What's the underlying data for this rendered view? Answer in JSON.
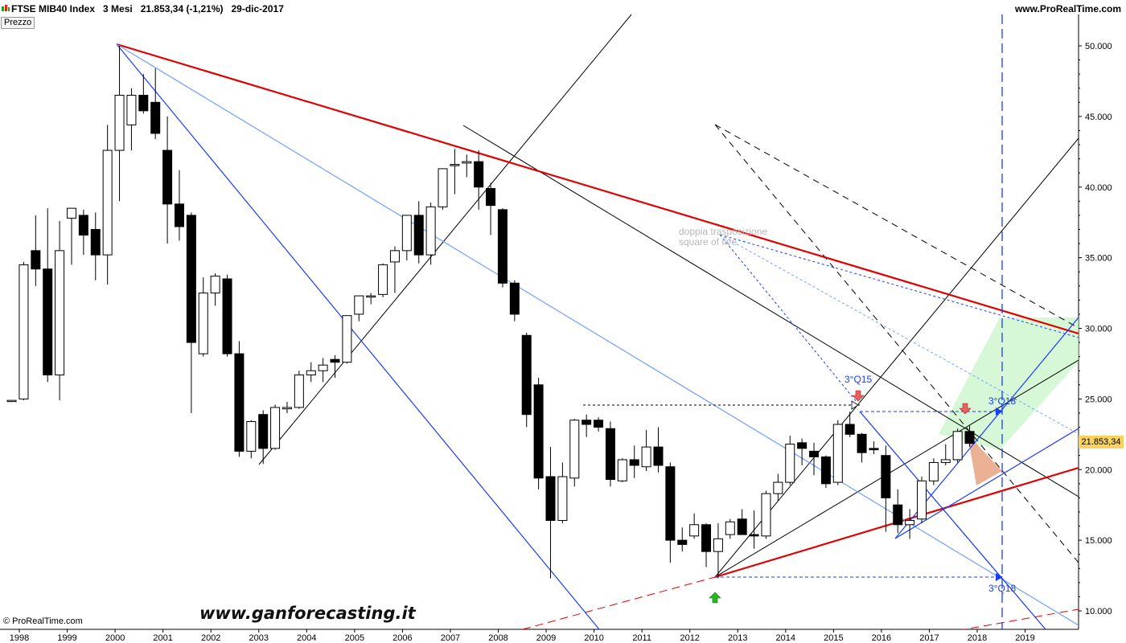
{
  "header": {
    "title": "FTSE MIB40 Index",
    "period": "3 Mesi",
    "last_quote": "21.853,34 (-1,21%)",
    "date": "29-dic-2017",
    "site": "www.ProRealTime.com"
  },
  "panel_label": "Prezzo",
  "credit": "© ProRealTime.com",
  "watermark": "www.ganforecasting.it",
  "last_price_label": "21.853,34",
  "annotations": {
    "q15": "3°Q15",
    "q18_upper": "3°Q18",
    "q18_lower": "3°Q18",
    "note_line1": "doppia trasposizione",
    "note_line2": "square of five"
  },
  "colors": {
    "red_trend": "#e00000",
    "blue": "#1a3cff",
    "light_blue": "#6fa0ff",
    "green_zone": "#c8f5c8",
    "salmon_zone": "#e9a88a",
    "last_price_bg": "#f7d25e"
  },
  "chart_data": {
    "type": "candlestick",
    "interval": "quarterly",
    "ylim": [
      9000,
      52000
    ],
    "y_ticks": [
      "50.000",
      "45.000",
      "40.000",
      "35.000",
      "30.000",
      "25.000",
      "20.000",
      "15.000",
      "10.000"
    ],
    "y_tick_values": [
      50000,
      45000,
      40000,
      35000,
      30000,
      25000,
      20000,
      15000,
      10000
    ],
    "x_ticks": [
      "1998",
      "1999",
      "2000",
      "2001",
      "2002",
      "2003",
      "2004",
      "2005",
      "2006",
      "2007",
      "2008",
      "2009",
      "2010",
      "2011",
      "2012",
      "2013",
      "2014",
      "2015",
      "2016",
      "2017",
      "2018",
      "2019"
    ],
    "x_range": [
      1997.75,
      2020.1
    ],
    "candles": [
      {
        "t": 1997.875,
        "o": 24900,
        "h": 24900,
        "l": 24900,
        "c": 24900
      },
      {
        "t": 1998.125,
        "o": 25000,
        "h": 34700,
        "l": 24900,
        "c": 34500
      },
      {
        "t": 1998.375,
        "o": 35500,
        "h": 38000,
        "l": 33000,
        "c": 34200
      },
      {
        "t": 1998.625,
        "o": 34200,
        "h": 38500,
        "l": 26200,
        "c": 26700
      },
      {
        "t": 1998.875,
        "o": 26700,
        "h": 37600,
        "l": 24900,
        "c": 35500
      },
      {
        "t": 1999.125,
        "o": 37800,
        "h": 38500,
        "l": 34500,
        "c": 38500
      },
      {
        "t": 1999.375,
        "o": 38000,
        "h": 38400,
        "l": 35200,
        "c": 36600
      },
      {
        "t": 1999.625,
        "o": 37000,
        "h": 38200,
        "l": 33400,
        "c": 35200
      },
      {
        "t": 1999.875,
        "o": 35200,
        "h": 44400,
        "l": 33100,
        "c": 42600
      },
      {
        "t": 2000.125,
        "o": 42600,
        "h": 50000,
        "l": 39000,
        "c": 46500
      },
      {
        "t": 2000.375,
        "o": 44400,
        "h": 47000,
        "l": 42600,
        "c": 46500
      },
      {
        "t": 2000.625,
        "o": 46500,
        "h": 48000,
        "l": 45200,
        "c": 45400
      },
      {
        "t": 2000.875,
        "o": 46000,
        "h": 48400,
        "l": 43400,
        "c": 43800
      },
      {
        "t": 2001.125,
        "o": 42600,
        "h": 45000,
        "l": 36000,
        "c": 38800
      },
      {
        "t": 2001.375,
        "o": 38800,
        "h": 41200,
        "l": 36200,
        "c": 37200
      },
      {
        "t": 2001.625,
        "o": 38000,
        "h": 38200,
        "l": 24000,
        "c": 29000
      },
      {
        "t": 2001.875,
        "o": 28200,
        "h": 33600,
        "l": 28000,
        "c": 32500
      },
      {
        "t": 2002.125,
        "o": 32500,
        "h": 33900,
        "l": 31600,
        "c": 33700
      },
      {
        "t": 2002.375,
        "o": 33500,
        "h": 33800,
        "l": 28000,
        "c": 28200
      },
      {
        "t": 2002.625,
        "o": 28200,
        "h": 29100,
        "l": 20900,
        "c": 21300
      },
      {
        "t": 2002.875,
        "o": 21300,
        "h": 23500,
        "l": 20800,
        "c": 23400
      },
      {
        "t": 2003.125,
        "o": 23900,
        "h": 24200,
        "l": 20400,
        "c": 21500
      },
      {
        "t": 2003.375,
        "o": 21500,
        "h": 24600,
        "l": 21400,
        "c": 24400
      },
      {
        "t": 2003.625,
        "o": 24300,
        "h": 24800,
        "l": 24000,
        "c": 24400
      },
      {
        "t": 2003.875,
        "o": 24400,
        "h": 27000,
        "l": 24300,
        "c": 26700
      },
      {
        "t": 2004.125,
        "o": 26700,
        "h": 27600,
        "l": 26200,
        "c": 27000
      },
      {
        "t": 2004.375,
        "o": 27000,
        "h": 27900,
        "l": 26200,
        "c": 27400
      },
      {
        "t": 2004.625,
        "o": 27800,
        "h": 28100,
        "l": 26500,
        "c": 27600
      },
      {
        "t": 2004.875,
        "o": 27600,
        "h": 30900,
        "l": 27500,
        "c": 30900
      },
      {
        "t": 2005.125,
        "o": 31000,
        "h": 32300,
        "l": 30500,
        "c": 32300
      },
      {
        "t": 2005.375,
        "o": 32300,
        "h": 32500,
        "l": 31700,
        "c": 32300
      },
      {
        "t": 2005.625,
        "o": 32400,
        "h": 34600,
        "l": 32200,
        "c": 34500
      },
      {
        "t": 2005.875,
        "o": 34700,
        "h": 35800,
        "l": 32500,
        "c": 35500
      },
      {
        "t": 2006.125,
        "o": 35500,
        "h": 38000,
        "l": 34800,
        "c": 38000
      },
      {
        "t": 2006.375,
        "o": 38000,
        "h": 39000,
        "l": 34600,
        "c": 35200
      },
      {
        "t": 2006.625,
        "o": 35200,
        "h": 38900,
        "l": 34500,
        "c": 38600
      },
      {
        "t": 2006.875,
        "o": 38600,
        "h": 41300,
        "l": 38400,
        "c": 41300
      },
      {
        "t": 2007.125,
        "o": 41600,
        "h": 42700,
        "l": 39500,
        "c": 41600
      },
      {
        "t": 2007.375,
        "o": 41700,
        "h": 42300,
        "l": 40700,
        "c": 41800
      },
      {
        "t": 2007.625,
        "o": 41800,
        "h": 42600,
        "l": 38400,
        "c": 40000
      },
      {
        "t": 2007.875,
        "o": 39900,
        "h": 40300,
        "l": 36600,
        "c": 38700
      },
      {
        "t": 2008.125,
        "o": 38400,
        "h": 38500,
        "l": 32900,
        "c": 33200
      },
      {
        "t": 2008.375,
        "o": 33200,
        "h": 33400,
        "l": 30500,
        "c": 31000
      },
      {
        "t": 2008.625,
        "o": 29500,
        "h": 29700,
        "l": 23000,
        "c": 23900
      },
      {
        "t": 2008.875,
        "o": 26000,
        "h": 26500,
        "l": 18600,
        "c": 19400
      },
      {
        "t": 2009.125,
        "o": 19500,
        "h": 21600,
        "l": 12300,
        "c": 16400
      },
      {
        "t": 2009.375,
        "o": 16400,
        "h": 20500,
        "l": 16200,
        "c": 19500
      },
      {
        "t": 2009.625,
        "o": 19400,
        "h": 23600,
        "l": 18800,
        "c": 23500
      },
      {
        "t": 2009.875,
        "o": 23500,
        "h": 23900,
        "l": 22300,
        "c": 23200
      },
      {
        "t": 2010.125,
        "o": 23500,
        "h": 23700,
        "l": 22700,
        "c": 23000
      },
      {
        "t": 2010.375,
        "o": 22900,
        "h": 23400,
        "l": 18800,
        "c": 19300
      },
      {
        "t": 2010.625,
        "o": 19200,
        "h": 20800,
        "l": 19100,
        "c": 20700
      },
      {
        "t": 2010.875,
        "o": 20700,
        "h": 21700,
        "l": 19400,
        "c": 20300
      },
      {
        "t": 2011.125,
        "o": 20200,
        "h": 22800,
        "l": 19900,
        "c": 21600
      },
      {
        "t": 2011.375,
        "o": 21600,
        "h": 23000,
        "l": 19800,
        "c": 20300
      },
      {
        "t": 2011.625,
        "o": 20200,
        "h": 20500,
        "l": 13400,
        "c": 15000
      },
      {
        "t": 2011.875,
        "o": 15000,
        "h": 15900,
        "l": 14200,
        "c": 14700
      },
      {
        "t": 2012.125,
        "o": 15300,
        "h": 16900,
        "l": 15100,
        "c": 16100
      },
      {
        "t": 2012.375,
        "o": 16100,
        "h": 16200,
        "l": 13100,
        "c": 14200
      },
      {
        "t": 2012.625,
        "o": 14200,
        "h": 16200,
        "l": 12300,
        "c": 15100
      },
      {
        "t": 2012.875,
        "o": 15400,
        "h": 16500,
        "l": 15100,
        "c": 16300
      },
      {
        "t": 2013.125,
        "o": 16500,
        "h": 17200,
        "l": 15400,
        "c": 15400
      },
      {
        "t": 2013.375,
        "o": 15400,
        "h": 17100,
        "l": 14400,
        "c": 15300
      },
      {
        "t": 2013.625,
        "o": 15300,
        "h": 18500,
        "l": 15100,
        "c": 18300
      },
      {
        "t": 2013.875,
        "o": 18300,
        "h": 19700,
        "l": 17800,
        "c": 19100
      },
      {
        "t": 2014.125,
        "o": 19100,
        "h": 22400,
        "l": 18900,
        "c": 21800
      },
      {
        "t": 2014.375,
        "o": 21900,
        "h": 22200,
        "l": 20300,
        "c": 21500
      },
      {
        "t": 2014.625,
        "o": 21300,
        "h": 21900,
        "l": 19600,
        "c": 20900
      },
      {
        "t": 2014.875,
        "o": 20900,
        "h": 21000,
        "l": 18700,
        "c": 19000
      },
      {
        "t": 2015.125,
        "o": 19100,
        "h": 23500,
        "l": 18900,
        "c": 23200
      },
      {
        "t": 2015.375,
        "o": 23200,
        "h": 24100,
        "l": 22300,
        "c": 22500
      },
      {
        "t": 2015.625,
        "o": 22500,
        "h": 22600,
        "l": 20500,
        "c": 21200
      },
      {
        "t": 2015.875,
        "o": 21500,
        "h": 22000,
        "l": 21100,
        "c": 21400
      },
      {
        "t": 2016.125,
        "o": 21000,
        "h": 21700,
        "l": 15600,
        "c": 18000
      },
      {
        "t": 2016.375,
        "o": 17500,
        "h": 18600,
        "l": 15500,
        "c": 16100
      },
      {
        "t": 2016.625,
        "o": 16100,
        "h": 17200,
        "l": 15100,
        "c": 16400
      },
      {
        "t": 2016.875,
        "o": 16500,
        "h": 19500,
        "l": 16200,
        "c": 19200
      },
      {
        "t": 2017.125,
        "o": 19200,
        "h": 20800,
        "l": 18900,
        "c": 20500
      },
      {
        "t": 2017.375,
        "o": 20500,
        "h": 21800,
        "l": 20300,
        "c": 20700
      },
      {
        "t": 2017.625,
        "o": 20700,
        "h": 22900,
        "l": 20500,
        "c": 22700
      },
      {
        "t": 2017.875,
        "o": 22700,
        "h": 23100,
        "l": 21600,
        "c": 21853
      }
    ],
    "last_price": 21853.34
  }
}
